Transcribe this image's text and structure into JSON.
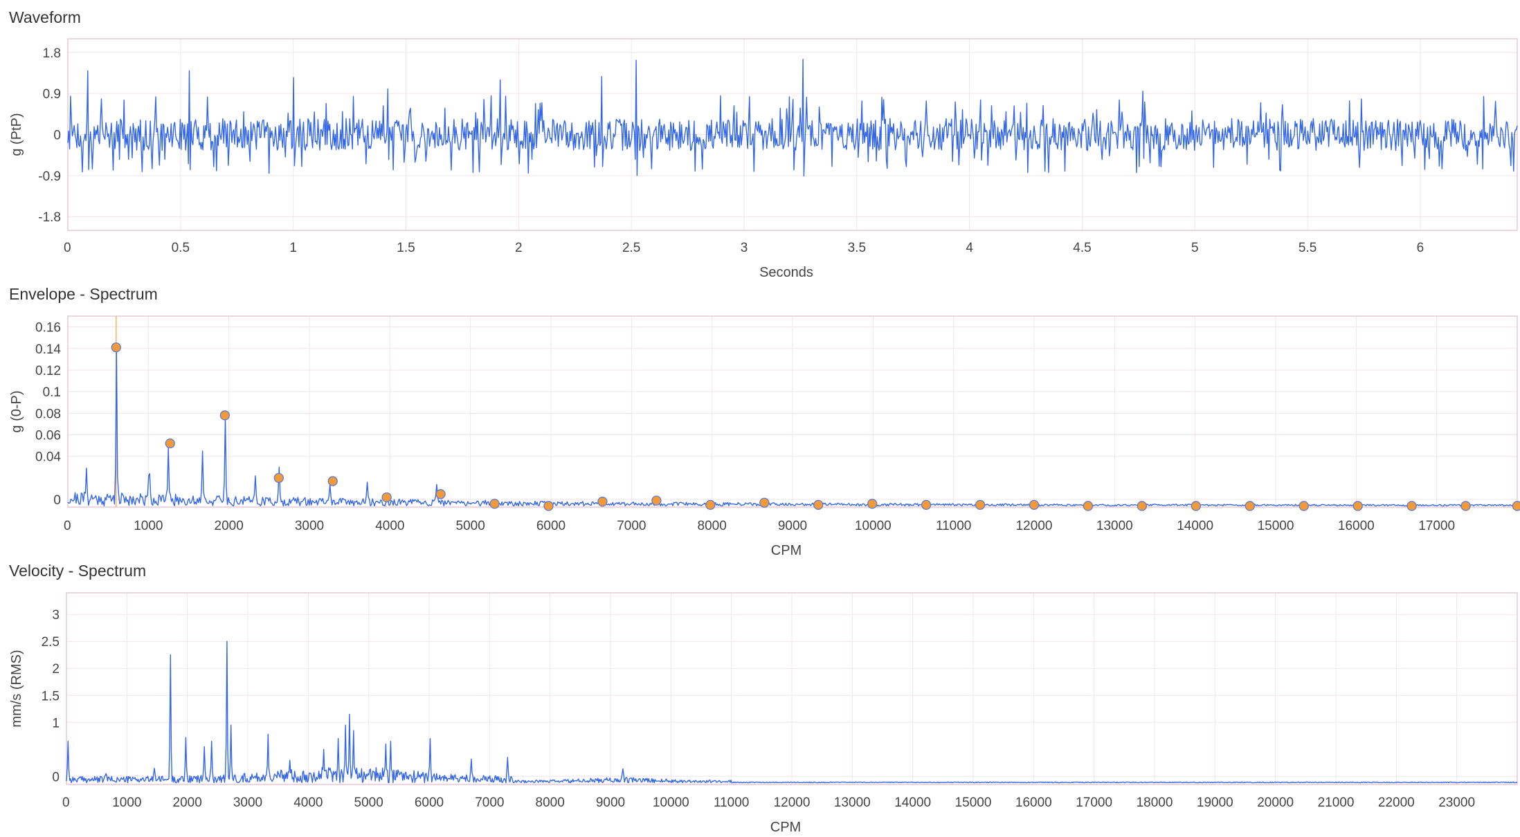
{
  "colors": {
    "series": "#3367e8",
    "marker": "#f39a38",
    "cursor": "#f5b45a",
    "grid": "#f1e4ea"
  },
  "chart_data": [
    {
      "type": "line",
      "title": "Waveform",
      "xlabel": "Seconds",
      "ylabel": "g (PtP)",
      "xlim": [
        0,
        6.43
      ],
      "ylim": [
        -2.1,
        2.1
      ],
      "xticks": [
        0,
        0.5,
        1,
        1.5,
        2,
        2.5,
        3,
        3.5,
        4,
        4.5,
        5,
        5.5,
        6
      ],
      "yticks": [
        -1.8,
        -0.9,
        0,
        0.9,
        1.8
      ],
      "ytick_labels": [
        "-1.8",
        "-0.9",
        "0",
        "0.9",
        "1.8"
      ],
      "sample_count": 1600,
      "peaks": [
        {
          "x": 0.09,
          "y": 1.4
        },
        {
          "x": 0.54,
          "y": 1.4
        },
        {
          "x": 1.0,
          "y": 1.25
        },
        {
          "x": 1.42,
          "y": 1.0
        },
        {
          "x": 1.92,
          "y": 1.2
        },
        {
          "x": 2.37,
          "y": 1.27
        },
        {
          "x": 2.52,
          "y": 1.63
        },
        {
          "x": 3.26,
          "y": 1.65
        },
        {
          "x": 4.77,
          "y": 0.95
        }
      ],
      "noise_amplitude": 0.35,
      "grid": true
    },
    {
      "type": "line",
      "title": "Envelope - Spectrum",
      "xlabel": "CPM",
      "ylabel": "g (0-P)",
      "xlim": [
        0,
        18000
      ],
      "ylim": [
        -0.007,
        0.17
      ],
      "xticks": [
        0,
        1000,
        2000,
        3000,
        4000,
        5000,
        6000,
        7000,
        8000,
        9000,
        10000,
        11000,
        12000,
        13000,
        14000,
        15000,
        16000,
        17000
      ],
      "yticks": [
        0,
        0.04,
        0.06,
        0.08,
        0.1,
        0.12,
        0.14,
        0.16
      ],
      "ytick_labels": [
        "0",
        "0.04",
        "0.06",
        "0.08",
        "0.1",
        "0.12",
        "0.14",
        "0.16"
      ],
      "cursor_x": 600,
      "peaks": [
        {
          "x": 230,
          "y": 0.029
        },
        {
          "x": 600,
          "y": 0.141
        },
        {
          "x": 1000,
          "y": 0.022
        },
        {
          "x": 1020,
          "y": 0.024
        },
        {
          "x": 1250,
          "y": 0.048
        },
        {
          "x": 1670,
          "y": 0.045
        },
        {
          "x": 1950,
          "y": 0.077
        },
        {
          "x": 2330,
          "y": 0.022
        },
        {
          "x": 2620,
          "y": 0.03
        },
        {
          "x": 3250,
          "y": 0.014
        },
        {
          "x": 3720,
          "y": 0.016
        },
        {
          "x": 4580,
          "y": 0.014
        }
      ],
      "harmonic_markers": [
        {
          "x": 600,
          "y": 0.141
        },
        {
          "x": 1270,
          "y": 0.052
        },
        {
          "x": 1950,
          "y": 0.078
        },
        {
          "x": 2620,
          "y": 0.02
        },
        {
          "x": 3290,
          "y": 0.017
        },
        {
          "x": 3960,
          "y": 0.002
        },
        {
          "x": 4630,
          "y": 0.005
        },
        {
          "x": 5300,
          "y": -0.004
        },
        {
          "x": 5970,
          "y": -0.006
        },
        {
          "x": 6640,
          "y": -0.002
        },
        {
          "x": 7310,
          "y": -0.001
        },
        {
          "x": 7980,
          "y": -0.005
        },
        {
          "x": 8650,
          "y": -0.003
        },
        {
          "x": 9320,
          "y": -0.005
        },
        {
          "x": 9990,
          "y": -0.004
        },
        {
          "x": 10660,
          "y": -0.005
        },
        {
          "x": 11330,
          "y": -0.005
        },
        {
          "x": 12000,
          "y": -0.005
        },
        {
          "x": 12670,
          "y": -0.006
        },
        {
          "x": 13340,
          "y": -0.006
        },
        {
          "x": 14010,
          "y": -0.006
        },
        {
          "x": 14680,
          "y": -0.006
        },
        {
          "x": 15350,
          "y": -0.006
        },
        {
          "x": 16020,
          "y": -0.006
        },
        {
          "x": 16690,
          "y": -0.006
        },
        {
          "x": 17360,
          "y": -0.006
        },
        {
          "x": 18000,
          "y": -0.006
        }
      ],
      "grid": true
    },
    {
      "type": "line",
      "title": "Velocity - Spectrum",
      "xlabel": "CPM",
      "ylabel": "mm/s (RMS)",
      "xlim": [
        0,
        24000
      ],
      "ylim": [
        -0.15,
        3.4
      ],
      "xticks": [
        0,
        1000,
        2000,
        3000,
        4000,
        5000,
        6000,
        7000,
        8000,
        9000,
        10000,
        11000,
        12000,
        13000,
        14000,
        15000,
        16000,
        17000,
        18000,
        19000,
        20000,
        21000,
        22000,
        23000
      ],
      "yticks": [
        0,
        1,
        1.5,
        2,
        2.5,
        3
      ],
      "ytick_labels": [
        "0",
        "1",
        "1.5",
        "2",
        "2.5",
        "3"
      ],
      "peaks": [
        {
          "x": 30,
          "y": 0.65
        },
        {
          "x": 650,
          "y": 0.05
        },
        {
          "x": 1450,
          "y": 0.15
        },
        {
          "x": 1720,
          "y": 2.25
        },
        {
          "x": 1980,
          "y": 0.72
        },
        {
          "x": 2280,
          "y": 0.55
        },
        {
          "x": 2400,
          "y": 0.65
        },
        {
          "x": 2650,
          "y": 2.5
        },
        {
          "x": 2720,
          "y": 0.95
        },
        {
          "x": 3330,
          "y": 0.78
        },
        {
          "x": 3700,
          "y": 0.3
        },
        {
          "x": 4250,
          "y": 0.5
        },
        {
          "x": 4500,
          "y": 0.7
        },
        {
          "x": 4620,
          "y": 0.95
        },
        {
          "x": 4680,
          "y": 1.15
        },
        {
          "x": 4750,
          "y": 0.85
        },
        {
          "x": 5280,
          "y": 0.6
        },
        {
          "x": 5360,
          "y": 0.65
        },
        {
          "x": 6020,
          "y": 0.7
        },
        {
          "x": 6700,
          "y": 0.32
        },
        {
          "x": 7300,
          "y": 0.35
        },
        {
          "x": 9200,
          "y": 0.14
        }
      ],
      "grid": true
    }
  ]
}
